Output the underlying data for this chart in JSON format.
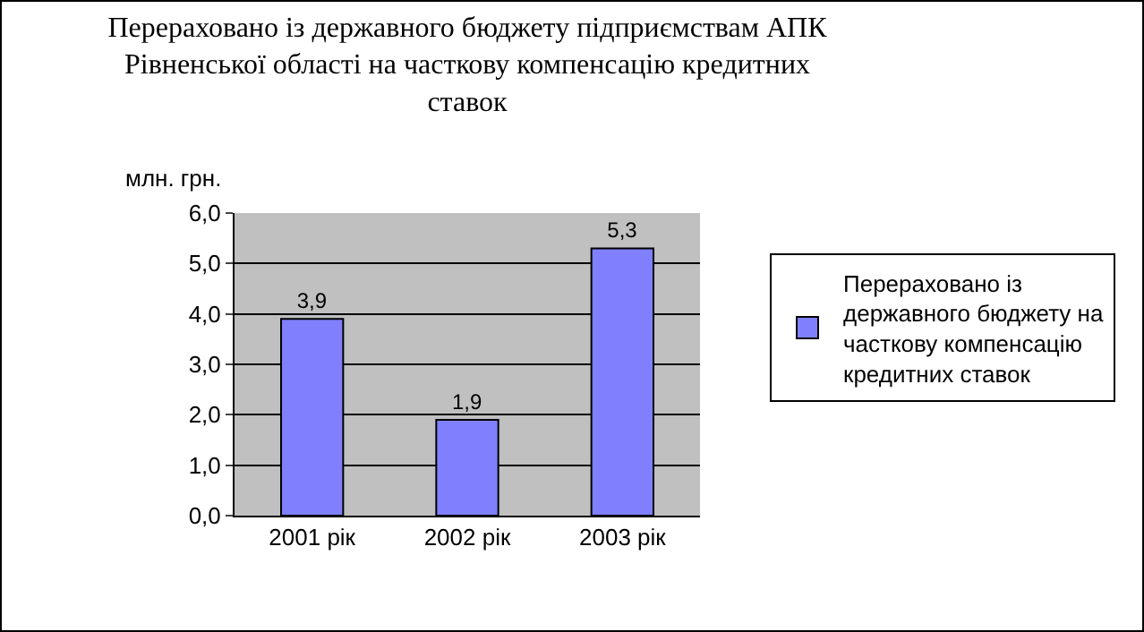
{
  "chart_data": {
    "type": "bar",
    "title": "Перераховано із державного бюджету підприємствам АПК Рівненської області на часткову компенсацію кредитних ставок",
    "ylabel": "млн. грн.",
    "categories": [
      "2001 рік",
      "2002 рік",
      "2003 рік"
    ],
    "series": [
      {
        "name": "Перераховано із державного бюджету на часткову компенсацію кредитних ставок",
        "color": "#8080ff",
        "values": [
          3.9,
          1.9,
          5.3
        ],
        "value_labels": [
          "3,9",
          "1,9",
          "5,3"
        ]
      }
    ],
    "ylim": [
      0,
      6
    ],
    "yticks": [
      {
        "value": 0,
        "label": "0,0"
      },
      {
        "value": 1,
        "label": "1,0"
      },
      {
        "value": 2,
        "label": "2,0"
      },
      {
        "value": 3,
        "label": "3,0"
      },
      {
        "value": 4,
        "label": "4,0"
      },
      {
        "value": 5,
        "label": "5,0"
      },
      {
        "value": 6,
        "label": "6,0"
      }
    ],
    "grid": "y",
    "legend": "right"
  }
}
